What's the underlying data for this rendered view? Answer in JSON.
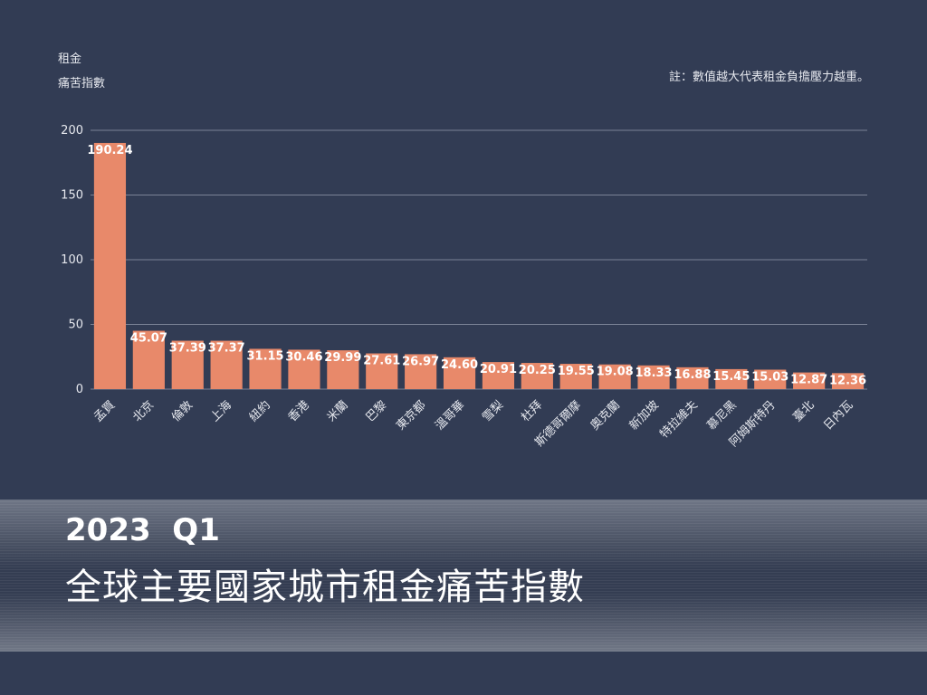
{
  "chart_data": {
    "type": "bar",
    "subtitle": "2023  Q1",
    "title": "全球主要國家城市租金痛苦指數",
    "y_label": [
      "租金",
      "痛苦指數"
    ],
    "note": "註：數值越大代表租金負擔壓力越重。",
    "categories": [
      "孟買",
      "北京",
      "倫敦",
      "上海",
      "紐約",
      "香港",
      "米蘭",
      "巴黎",
      "東京都",
      "溫哥華",
      "雪梨",
      "杜拜",
      "斯德哥爾摩",
      "奧克蘭",
      "新加坡",
      "特拉維夫",
      "慕尼黑",
      "阿姆斯特丹",
      "臺北",
      "日內瓦"
    ],
    "values": [
      190.24,
      45.07,
      37.39,
      37.37,
      31.15,
      30.46,
      29.99,
      27.61,
      26.97,
      24.6,
      20.91,
      20.25,
      19.55,
      19.08,
      18.33,
      16.88,
      15.45,
      15.03,
      12.87,
      12.36
    ],
    "value_labels": [
      "190.24",
      "45.07",
      "37.39",
      "37.37",
      "31.15",
      "30.46",
      "29.99",
      "27.61",
      "26.97",
      "24.60",
      "20.91",
      "20.25",
      "19.55",
      "19.08",
      "18.33",
      "16.88",
      "15.45",
      "15.03",
      "12.87",
      "12.36"
    ],
    "color": "#e8896a",
    "ylim": [
      0,
      200
    ],
    "yticks": [
      0,
      50,
      100,
      150,
      200
    ],
    "grid": true
  }
}
